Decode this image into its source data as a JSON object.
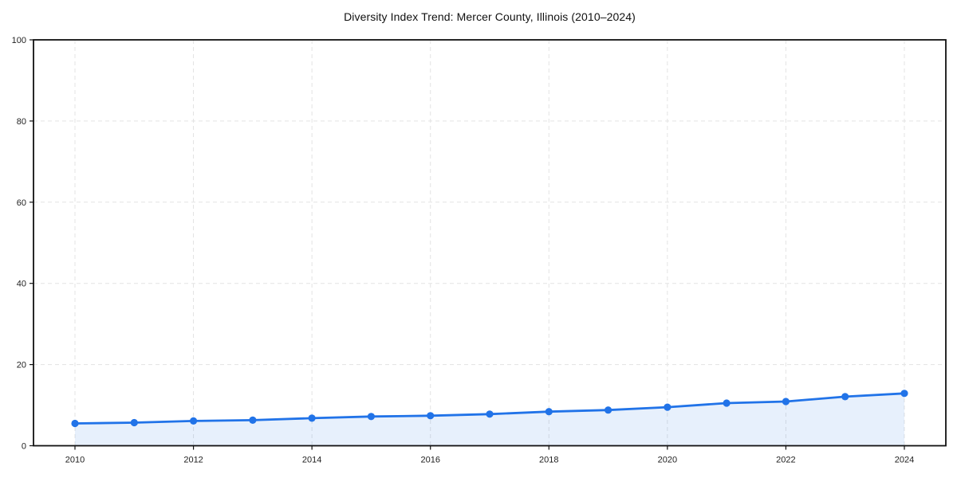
{
  "page": {
    "background": "#ffffff"
  },
  "chart_data": {
    "type": "area",
    "title": "Diversity Index Trend: Mercer County, Illinois (2010–2024)",
    "xlabel": "",
    "ylabel": "",
    "x": [
      2010,
      2011,
      2012,
      2013,
      2014,
      2015,
      2016,
      2017,
      2018,
      2019,
      2020,
      2021,
      2022,
      2023,
      2024
    ],
    "series": [
      {
        "name": "Diversity Index",
        "values": [
          5.5,
          5.7,
          6.1,
          6.3,
          6.8,
          7.2,
          7.4,
          7.8,
          8.4,
          8.8,
          9.5,
          10.5,
          10.9,
          12.1,
          12.9
        ]
      }
    ],
    "xlim": [
      2009.3,
      2024.7
    ],
    "ylim": [
      0,
      100
    ],
    "x_ticks": [
      2010,
      2012,
      2014,
      2016,
      2018,
      2020,
      2022,
      2024
    ],
    "y_ticks": [
      0,
      20,
      40,
      60,
      80,
      100
    ],
    "grid": true,
    "grid_style": "dashed",
    "legend": "none",
    "marker_radius": 4.6,
    "colors": {
      "line": "#2173e8",
      "marker": "#2173e8",
      "fill_base": "#2173e8",
      "fill_opacity": 0.11,
      "grid": "#e3e3e3",
      "axis": "#111111",
      "tick_label": "#1f1f1f",
      "title": "#111111",
      "background": "#ffffff"
    }
  }
}
